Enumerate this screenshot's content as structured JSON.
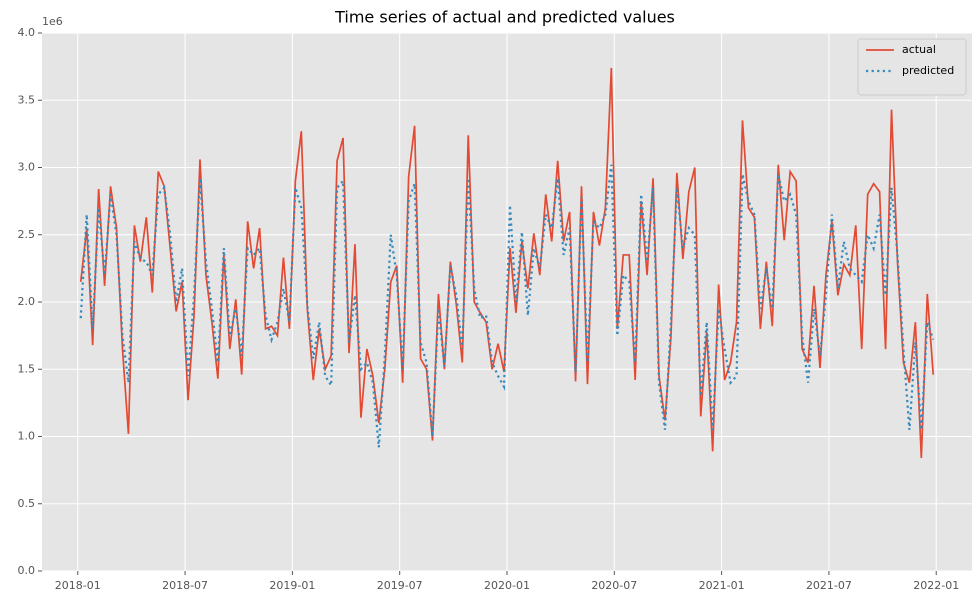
{
  "chart_data": {
    "type": "line",
    "title": "Time series of actual and predicted values",
    "y_offset_label": "1e6",
    "x": [
      "2018-01",
      "2018-01",
      "2018-01",
      "2018-02",
      "2018-02",
      "2018-02",
      "2018-03",
      "2018-03",
      "2018-03",
      "2018-04",
      "2018-04",
      "2018-04",
      "2018-05",
      "2018-05",
      "2018-05",
      "2018-06",
      "2018-06",
      "2018-06",
      "2018-07",
      "2018-07",
      "2018-07",
      "2018-08",
      "2018-08",
      "2018-08",
      "2018-09",
      "2018-09",
      "2018-09",
      "2018-10",
      "2018-10",
      "2018-10",
      "2018-11",
      "2018-11",
      "2018-11",
      "2018-12",
      "2018-12",
      "2018-12",
      "2019-01",
      "2019-01",
      "2019-01",
      "2019-02",
      "2019-02",
      "2019-02",
      "2019-03",
      "2019-03",
      "2019-03",
      "2019-04",
      "2019-04",
      "2019-04",
      "2019-05",
      "2019-05",
      "2019-05",
      "2019-06",
      "2019-06",
      "2019-06",
      "2019-07",
      "2019-07",
      "2019-07",
      "2019-08",
      "2019-08",
      "2019-08",
      "2019-09",
      "2019-09",
      "2019-09",
      "2019-10",
      "2019-10",
      "2019-10",
      "2019-11",
      "2019-11",
      "2019-11",
      "2019-12",
      "2019-12",
      "2019-12",
      "2020-01",
      "2020-01",
      "2020-01",
      "2020-02",
      "2020-02",
      "2020-02",
      "2020-03",
      "2020-03",
      "2020-03",
      "2020-04",
      "2020-04",
      "2020-04",
      "2020-05",
      "2020-05",
      "2020-05",
      "2020-06",
      "2020-06",
      "2020-06",
      "2020-07",
      "2020-07",
      "2020-07",
      "2020-08",
      "2020-08",
      "2020-08",
      "2020-09",
      "2020-09",
      "2020-09",
      "2020-10",
      "2020-10",
      "2020-10",
      "2020-11",
      "2020-11",
      "2020-11",
      "2020-12",
      "2020-12",
      "2020-12",
      "2021-01",
      "2021-01",
      "2021-01",
      "2021-02",
      "2021-02",
      "2021-02",
      "2021-03",
      "2021-03",
      "2021-03",
      "2021-04",
      "2021-04",
      "2021-04",
      "2021-05",
      "2021-05",
      "2021-05",
      "2021-06",
      "2021-06",
      "2021-06",
      "2021-07",
      "2021-07",
      "2021-07",
      "2021-08",
      "2021-08",
      "2021-08",
      "2021-09",
      "2021-09",
      "2021-09",
      "2021-10",
      "2021-10",
      "2021-10",
      "2021-11",
      "2021-11",
      "2021-11",
      "2021-12",
      "2021-12",
      "2021-12"
    ],
    "series": [
      {
        "name": "actual",
        "color": "#E24A33",
        "style": "solid",
        "values": [
          2.15,
          2.55,
          1.68,
          2.84,
          2.12,
          2.86,
          2.55,
          1.65,
          1.02,
          2.57,
          2.3,
          2.63,
          2.07,
          2.97,
          2.86,
          2.4,
          1.93,
          2.15,
          1.27,
          1.9,
          3.06,
          2.2,
          1.85,
          1.43,
          2.35,
          1.65,
          2.02,
          1.46,
          2.6,
          2.25,
          2.55,
          1.8,
          1.82,
          1.75,
          2.33,
          1.8,
          2.9,
          3.27,
          1.95,
          1.42,
          1.8,
          1.5,
          1.6,
          3.05,
          3.22,
          1.62,
          2.43,
          1.14,
          1.65,
          1.45,
          1.1,
          1.5,
          2.15,
          2.27,
          1.4,
          2.93,
          3.31,
          1.58,
          1.5,
          0.97,
          2.06,
          1.5,
          2.3,
          1.98,
          1.55,
          3.24,
          2.0,
          1.92,
          1.85,
          1.5,
          1.69,
          1.48,
          2.4,
          1.92,
          2.45,
          2.1,
          2.51,
          2.2,
          2.8,
          2.45,
          3.05,
          2.45,
          2.67,
          1.41,
          2.86,
          1.39,
          2.67,
          2.42,
          2.7,
          3.74,
          1.8,
          2.35,
          2.35,
          1.42,
          2.75,
          2.2,
          2.92,
          1.45,
          1.12,
          1.74,
          2.96,
          2.32,
          2.82,
          3.0,
          1.15,
          1.78,
          0.89,
          2.13,
          1.42,
          1.55,
          1.85,
          3.35,
          2.7,
          2.63,
          1.8,
          2.3,
          1.82,
          3.02,
          2.46,
          2.97,
          2.9,
          1.65,
          1.55,
          2.12,
          1.51,
          2.2,
          2.6,
          2.05,
          2.28,
          2.2,
          2.57,
          1.65,
          2.8,
          2.88,
          2.82,
          1.65,
          3.43,
          2.3,
          1.55,
          1.4,
          1.85,
          0.84,
          2.06,
          1.46
        ]
      },
      {
        "name": "predicted",
        "color": "#348ABD",
        "style": "dotted",
        "values": [
          1.88,
          2.65,
          1.8,
          2.7,
          2.2,
          2.8,
          2.5,
          1.75,
          1.4,
          2.45,
          2.32,
          2.3,
          2.2,
          2.8,
          2.85,
          2.5,
          2.0,
          2.25,
          1.45,
          2.05,
          2.92,
          2.3,
          1.95,
          1.55,
          2.4,
          1.75,
          1.95,
          1.6,
          2.4,
          2.35,
          2.4,
          1.9,
          1.72,
          1.85,
          2.1,
          1.85,
          2.85,
          2.7,
          1.98,
          1.58,
          1.85,
          1.45,
          1.38,
          2.85,
          2.9,
          1.7,
          2.05,
          1.5,
          1.55,
          1.4,
          0.92,
          1.6,
          2.5,
          2.2,
          1.5,
          2.75,
          2.88,
          1.7,
          1.55,
          1.0,
          1.95,
          1.52,
          2.27,
          2.05,
          1.65,
          2.92,
          2.1,
          1.88,
          1.9,
          1.55,
          1.45,
          1.37,
          2.72,
          2.0,
          2.52,
          1.9,
          2.4,
          2.25,
          2.65,
          2.55,
          2.92,
          2.35,
          2.55,
          1.48,
          2.78,
          1.55,
          2.6,
          2.55,
          2.65,
          3.02,
          1.75,
          2.2,
          2.15,
          1.55,
          2.8,
          2.3,
          2.85,
          1.4,
          1.05,
          1.85,
          2.85,
          2.4,
          2.55,
          2.5,
          1.3,
          1.85,
          1.05,
          1.95,
          1.65,
          1.4,
          1.45,
          2.95,
          2.75,
          2.65,
          1.95,
          2.25,
          1.95,
          2.95,
          2.75,
          2.8,
          2.65,
          1.75,
          1.4,
          1.95,
          1.6,
          2.05,
          2.65,
          2.1,
          2.45,
          2.25,
          2.2,
          2.15,
          2.5,
          2.4,
          2.65,
          2.05,
          2.85,
          2.35,
          1.65,
          1.05,
          1.7,
          1.05,
          1.85,
          1.72
        ]
      }
    ],
    "xlim": [
      "2017-11",
      "2022-03"
    ],
    "xticks": [
      "2018-01",
      "2018-07",
      "2019-01",
      "2019-07",
      "2020-01",
      "2020-07",
      "2021-01",
      "2021-07",
      "2022-01"
    ],
    "ylim": [
      0,
      4
    ],
    "yticks": [
      {
        "value": 0,
        "label": "0.0"
      },
      0.5,
      {
        "value": 1,
        "label": "1.0"
      },
      1.5,
      {
        "value": 2,
        "label": "2.0"
      },
      2.5,
      {
        "value": 3,
        "label": "3.0"
      },
      3.5,
      {
        "value": 4,
        "label": "4.0"
      }
    ],
    "grid": true,
    "legend": "upper right"
  }
}
